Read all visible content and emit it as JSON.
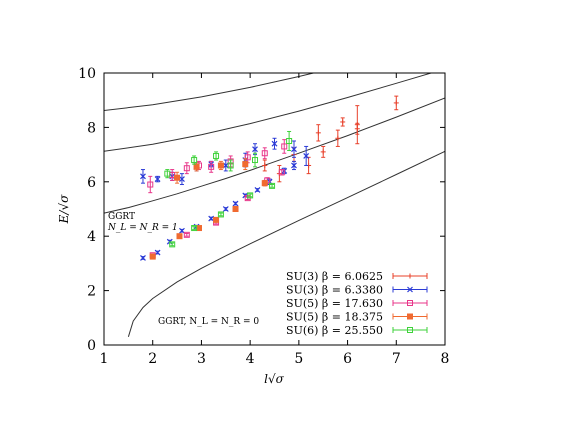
{
  "chart_data": {
    "type": "scatter",
    "xlabel": "l√σ",
    "ylabel": "E/√σ",
    "xlim": [
      1,
      8
    ],
    "ylim": [
      0,
      10
    ],
    "x_ticks": [
      1,
      2,
      3,
      4,
      5,
      6,
      7,
      8
    ],
    "y_ticks": [
      0,
      2,
      4,
      6,
      8,
      10
    ],
    "grid": false,
    "legend_position": "bottom-right",
    "annotations": [
      {
        "line1": "GGRT",
        "line2": "N_L = N_R = 1"
      },
      {
        "text": "GGRT, N_L = N_R = 0"
      }
    ],
    "theory_curves": [
      {
        "level": 0,
        "points": [
          [
            1.5,
            0.3
          ],
          [
            1.6,
            0.88
          ],
          [
            1.8,
            1.38
          ],
          [
            2,
            1.71
          ],
          [
            2.5,
            2.32
          ],
          [
            3,
            2.82
          ],
          [
            3.5,
            3.28
          ],
          [
            4,
            3.72
          ],
          [
            5,
            4.58
          ],
          [
            6,
            5.42
          ],
          [
            7,
            6.27
          ],
          [
            8,
            7.12
          ]
        ]
      },
      {
        "level": 1,
        "points": [
          [
            1,
            4.85
          ],
          [
            1.5,
            5.05
          ],
          [
            2,
            5.3
          ],
          [
            2.5,
            5.56
          ],
          [
            3,
            5.84
          ],
          [
            3.5,
            6.12
          ],
          [
            4,
            6.42
          ],
          [
            5,
            7.05
          ],
          [
            6,
            7.7
          ],
          [
            7,
            8.38
          ],
          [
            8,
            9.08
          ]
        ]
      },
      {
        "level": 2,
        "points": [
          [
            1,
            7.12
          ],
          [
            2,
            7.38
          ],
          [
            3,
            7.73
          ],
          [
            4,
            8.14
          ],
          [
            5,
            8.6
          ],
          [
            6,
            9.1
          ],
          [
            7,
            9.62
          ],
          [
            8,
            10.15
          ]
        ]
      },
      {
        "level": 3,
        "points": [
          [
            1,
            8.62
          ],
          [
            2,
            8.83
          ],
          [
            3,
            9.12
          ],
          [
            4,
            9.47
          ],
          [
            5,
            9.87
          ],
          [
            6,
            10.3
          ]
        ]
      }
    ],
    "series": [
      {
        "name": "SU(3) β = 6.0625",
        "color": "#e8402a",
        "marker": "plus",
        "points": [
          [
            4.9,
            7.0,
            0.25
          ],
          [
            5.4,
            7.8,
            0.3
          ],
          [
            5.5,
            7.1,
            0.2
          ],
          [
            5.8,
            7.6,
            0.3
          ],
          [
            5.9,
            8.2,
            0.15
          ],
          [
            6.2,
            8.1,
            0.7
          ],
          [
            7.0,
            8.9,
            0.25
          ],
          [
            5.2,
            6.6,
            0.3
          ],
          [
            4.6,
            6.3,
            0.3
          ],
          [
            4.3,
            6.6,
            0.2
          ],
          [
            6.2,
            7.95,
            0.2
          ]
        ]
      },
      {
        "name": "SU(3) β = 6.3380",
        "color": "#2b3bd6",
        "marker": "x",
        "points": [
          [
            1.8,
            6.2,
            0.25
          ],
          [
            2.1,
            6.1,
            0.1
          ],
          [
            2.4,
            6.2,
            0.15
          ],
          [
            2.6,
            6.1,
            0.2
          ],
          [
            2.9,
            6.55,
            0.15
          ],
          [
            3.2,
            6.65,
            0.1
          ],
          [
            3.5,
            6.6,
            0.2
          ],
          [
            3.9,
            6.8,
            0.25
          ],
          [
            4.1,
            7.2,
            0.2
          ],
          [
            4.5,
            7.4,
            0.2
          ],
          [
            4.9,
            7.2,
            0.3
          ],
          [
            5.15,
            6.95,
            0.35
          ],
          [
            1.8,
            3.2,
            0.05
          ],
          [
            2.1,
            3.4,
            0.05
          ],
          [
            2.35,
            3.8,
            0.05
          ],
          [
            2.6,
            4.2,
            0.05
          ],
          [
            2.9,
            4.35,
            0.05
          ],
          [
            3.2,
            4.65,
            0.05
          ],
          [
            3.5,
            5.0,
            0.05
          ],
          [
            3.7,
            5.2,
            0.05
          ],
          [
            3.9,
            5.5,
            0.05
          ],
          [
            4.15,
            5.7,
            0.05
          ],
          [
            4.4,
            6.0,
            0.1
          ],
          [
            4.7,
            6.4,
            0.1
          ],
          [
            4.9,
            6.6,
            0.15
          ]
        ]
      },
      {
        "name": "SU(5) β = 17.630",
        "color": "#e8368a",
        "marker": "square-open",
        "points": [
          [
            1.95,
            5.9,
            0.3
          ],
          [
            2.4,
            6.25,
            0.2
          ],
          [
            2.7,
            6.5,
            0.2
          ],
          [
            2.95,
            6.6,
            0.15
          ],
          [
            3.2,
            6.55,
            0.2
          ],
          [
            3.6,
            6.75,
            0.2
          ],
          [
            3.95,
            6.9,
            0.2
          ],
          [
            4.3,
            7.05,
            0.2
          ],
          [
            4.7,
            7.3,
            0.25
          ],
          [
            2.0,
            3.3,
            0.05
          ],
          [
            2.7,
            4.05,
            0.05
          ],
          [
            3.3,
            4.5,
            0.05
          ],
          [
            3.95,
            5.4,
            0.05
          ],
          [
            4.35,
            6.05,
            0.1
          ],
          [
            4.65,
            6.35,
            0.1
          ]
        ]
      },
      {
        "name": "SU(5) β = 18.375",
        "color": "#f06a30",
        "marker": "square-filled",
        "points": [
          [
            2.5,
            6.15,
            0.2
          ],
          [
            2.9,
            6.55,
            0.15
          ],
          [
            3.4,
            6.6,
            0.15
          ],
          [
            3.9,
            6.65,
            0.2
          ],
          [
            2.0,
            3.25,
            0.05
          ],
          [
            2.55,
            4.0,
            0.05
          ],
          [
            2.95,
            4.3,
            0.05
          ],
          [
            3.3,
            4.6,
            0.05
          ],
          [
            3.7,
            5.0,
            0.05
          ],
          [
            4.3,
            5.95,
            0.1
          ]
        ]
      },
      {
        "name": "SU(6) β = 25.550",
        "color": "#3ed23a",
        "marker": "square-open",
        "points": [
          [
            2.3,
            6.3,
            0.15
          ],
          [
            2.85,
            6.8,
            0.15
          ],
          [
            3.3,
            6.95,
            0.15
          ],
          [
            3.6,
            6.6,
            0.2
          ],
          [
            4.1,
            6.8,
            0.25
          ],
          [
            4.8,
            7.5,
            0.35
          ],
          [
            2.4,
            3.7,
            0.05
          ],
          [
            2.85,
            4.3,
            0.05
          ],
          [
            3.4,
            4.8,
            0.05
          ],
          [
            4.0,
            5.5,
            0.05
          ],
          [
            4.45,
            5.85,
            0.05
          ]
        ]
      }
    ]
  }
}
